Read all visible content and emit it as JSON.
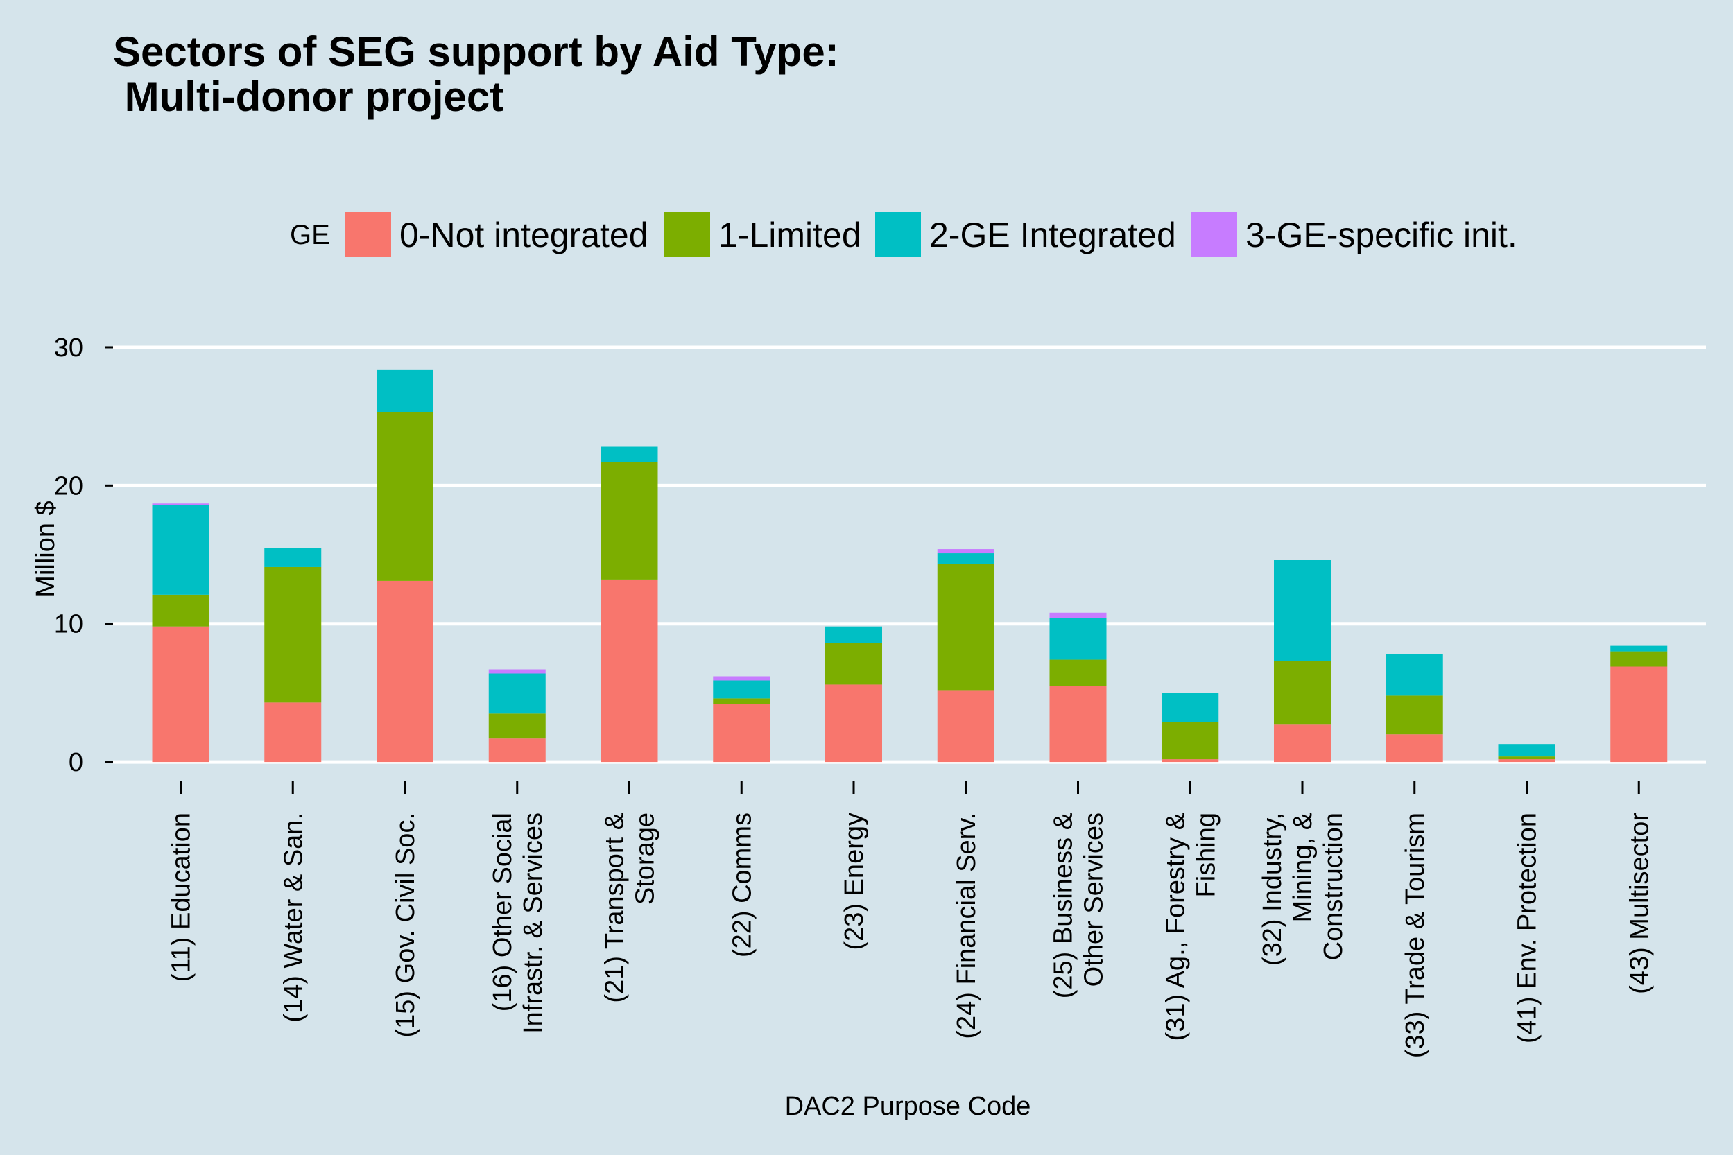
{
  "title_lines": [
    "Sectors of SEG support by Aid Type:",
    " Multi-donor project"
  ],
  "legend": {
    "title": "GE",
    "items": [
      {
        "label": "0-Not integrated",
        "color": "#f8766d"
      },
      {
        "label": "1-Limited",
        "color": "#7cae00"
      },
      {
        "label": "2-GE Integrated",
        "color": "#00bfc4"
      },
      {
        "label": "3-GE-specific init.",
        "color": "#c77cff"
      }
    ]
  },
  "colors": {
    "background": "#d5e4eb",
    "gridline": "#ffffff",
    "tick": "#000000"
  },
  "chart_data": {
    "type": "bar",
    "stacked": true,
    "xlabel": "DAC2 Purpose Code",
    "ylabel": "Million $",
    "ylim": [
      -1.4,
      30.5
    ],
    "yticks": [
      0,
      10,
      20,
      30
    ],
    "grid": true,
    "legend_position": "top",
    "categories": [
      "(11) Education",
      "(14) Water & San.",
      "(15) Gov. Civil Soc.",
      "(16) Other Social\nInfrastr. & Services",
      "(21) Transport &\nStorage",
      "(22) Comms",
      "(23) Energy",
      "(24) Financial Serv.",
      "(25) Business &\nOther Services",
      "(31) Ag., Forestry &\nFishing",
      "(32) Industry,\nMining, &\nConstruction",
      "(33) Trade & Tourism",
      "(41) Env. Protection",
      "(43) Multisector"
    ],
    "series": [
      {
        "name": "0-Not integrated",
        "values": [
          9.8,
          4.3,
          13.1,
          1.7,
          13.2,
          4.2,
          5.6,
          5.2,
          5.5,
          0.2,
          2.7,
          2.0,
          0.2,
          6.9
        ]
      },
      {
        "name": "1-Limited",
        "values": [
          2.3,
          9.8,
          12.2,
          1.8,
          8.5,
          0.4,
          3.0,
          9.1,
          1.9,
          2.7,
          4.6,
          2.8,
          0.2,
          1.1
        ]
      },
      {
        "name": "2-GE Integrated",
        "values": [
          6.5,
          1.4,
          3.1,
          2.9,
          1.1,
          1.3,
          1.2,
          0.8,
          3.0,
          2.1,
          7.3,
          3.0,
          0.9,
          0.4
        ]
      },
      {
        "name": "3-GE-specific init.",
        "values": [
          0.1,
          0.0,
          0.0,
          0.3,
          0.0,
          0.3,
          0.0,
          0.3,
          0.4,
          0.0,
          0.0,
          0.0,
          0.0,
          0.0
        ]
      }
    ]
  }
}
